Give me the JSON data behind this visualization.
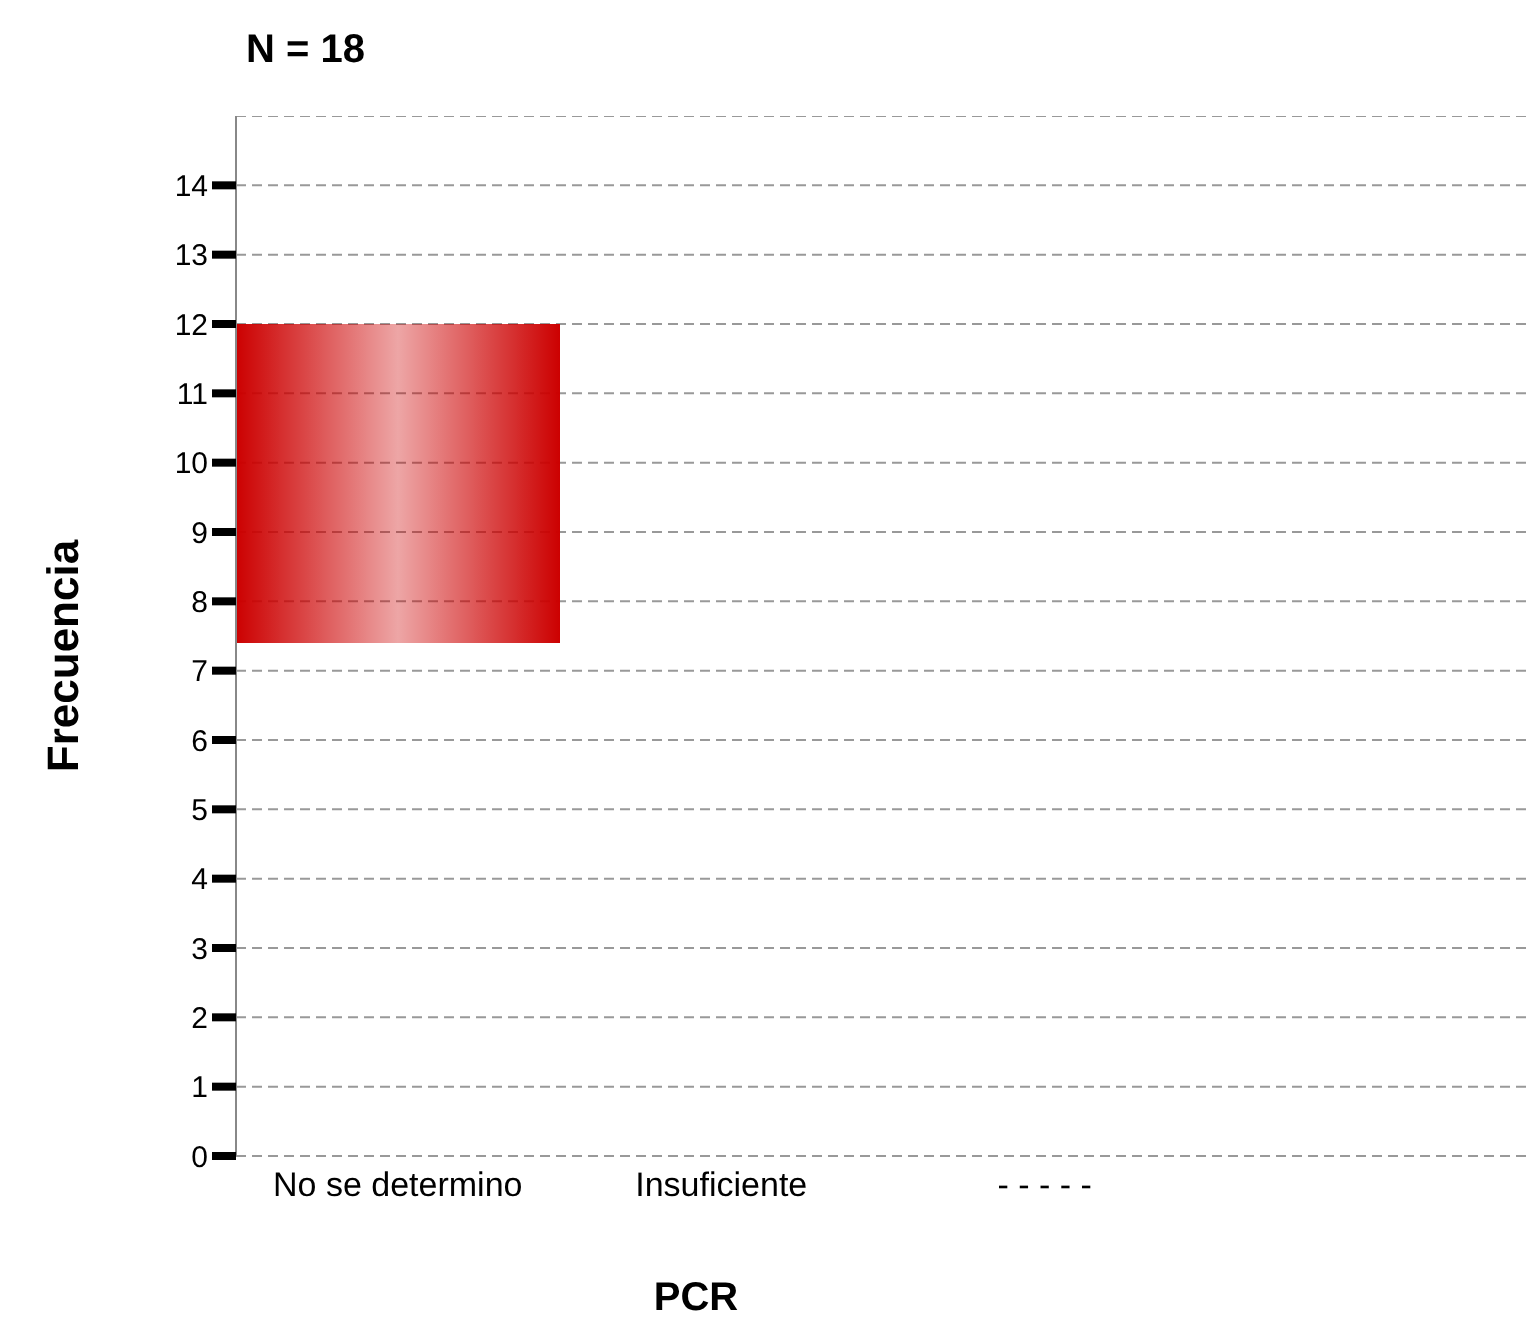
{
  "chart_data": {
    "type": "bar",
    "title": "N = 18",
    "xlabel": "PCR",
    "ylabel": "Frecuencia",
    "categories": [
      "No se determino",
      "Insuficiente",
      "- - - - -",
      null
    ],
    "values": [
      4.6,
      null,
      null,
      null
    ],
    "base": [
      7.4,
      null,
      null,
      null
    ],
    "color": "#cc0000",
    "ylim": [
      0,
      15
    ],
    "yticks": [
      0,
      1,
      2,
      3,
      4,
      5,
      6,
      7,
      8,
      9,
      10,
      11,
      12,
      13,
      14
    ],
    "grid": "y",
    "legend": false
  }
}
